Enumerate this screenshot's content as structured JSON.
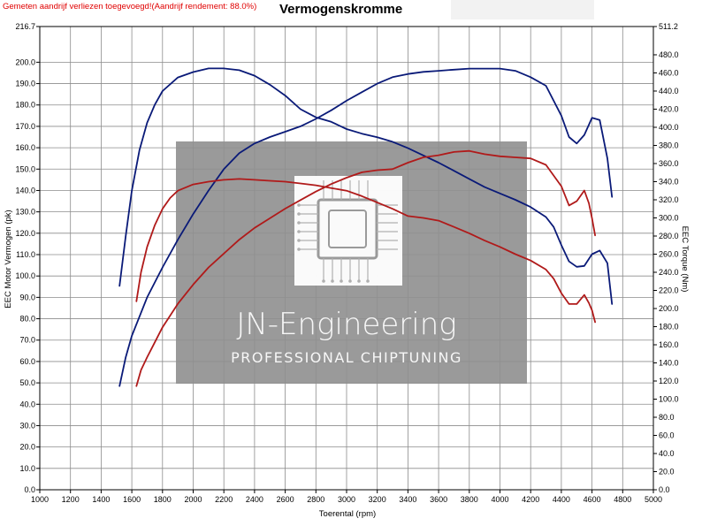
{
  "notice": "Gemeten aandrijf verliezen toegevoegd!(Aandrijf rendement: 88.0%)",
  "title": "Vermogenskromme",
  "watermark": {
    "brand": "JN-Engineering",
    "tagline": "PROFESSIONAL CHIPTUNING",
    "logo": "circuit-chip-logo"
  },
  "colors": {
    "tuned": "#0a1a78",
    "stock": "#b01a1a",
    "grid": "#8c8c8c",
    "watermark_bg": "#8f8f8f"
  },
  "chart_data": {
    "type": "line",
    "title": "Vermogenskromme",
    "xlabel": "Toerental (rpm)",
    "ylabel": "EEC Motor Vermogen (pk)",
    "y2label": "EEC Torque (Nm)",
    "xlim": [
      1000,
      5000
    ],
    "ylim": [
      0,
      216.7
    ],
    "y2lim": [
      0,
      511.2
    ],
    "x_ticks": [
      "1000",
      "1200",
      "1400",
      "1600",
      "1800",
      "2000",
      "2200",
      "2400",
      "2600",
      "2800",
      "3000",
      "3200",
      "3400",
      "3600",
      "3800",
      "4000",
      "4200",
      "4400",
      "4600",
      "4800",
      "5000"
    ],
    "y_ticks": [
      "0.0",
      "10.0",
      "20.0",
      "30.0",
      "40.0",
      "50.0",
      "60.0",
      "70.0",
      "80.0",
      "90.0",
      "100.0",
      "110.0",
      "120.0",
      "130.0",
      "140.0",
      "150.0",
      "160.0",
      "170.0",
      "180.0",
      "190.0",
      "200.0",
      "216.7"
    ],
    "y2_ticks": [
      "0.0",
      "20.0",
      "40.0",
      "60.0",
      "80.0",
      "100.0",
      "120.0",
      "140.0",
      "160.0",
      "180.0",
      "200.0",
      "220.0",
      "240.0",
      "260.0",
      "280.0",
      "300.0",
      "320.0",
      "340.0",
      "360.0",
      "380.0",
      "400.0",
      "420.0",
      "440.0",
      "460.0",
      "480.0",
      "511.2"
    ],
    "grid": true,
    "legend": "none",
    "series": [
      {
        "axis": "right",
        "color": "#0a1a78",
        "x": [
          1520,
          1560,
          1600,
          1650,
          1700,
          1750,
          1800,
          1900,
          2000,
          2100,
          2200,
          2300,
          2400,
          2500,
          2600,
          2700,
          2800,
          2900,
          3000,
          3100,
          3200,
          3300,
          3400,
          3500,
          3600,
          3700,
          3800,
          3900,
          4000,
          4100,
          4200,
          4300,
          4350,
          4400,
          4450,
          4500,
          4550,
          4600,
          4650,
          4700,
          4730
        ],
        "y": [
          225,
          280,
          330,
          375,
          405,
          425,
          440,
          455,
          461,
          465,
          465,
          463,
          457,
          447,
          435,
          420,
          411,
          406,
          398,
          393,
          389,
          384,
          377,
          369,
          361,
          352,
          343,
          334,
          327,
          320,
          312,
          301,
          290,
          270,
          252,
          246,
          247,
          260,
          264,
          250,
          205
        ]
      },
      {
        "axis": "left",
        "color": "#0a1a78",
        "x": [
          1520,
          1560,
          1600,
          1650,
          1700,
          1800,
          1900,
          2000,
          2100,
          2200,
          2300,
          2400,
          2500,
          2600,
          2700,
          2800,
          2900,
          3000,
          3100,
          3200,
          3300,
          3400,
          3500,
          3600,
          3700,
          3800,
          3900,
          4000,
          4100,
          4200,
          4300,
          4400,
          4450,
          4500,
          4550,
          4600,
          4650,
          4700,
          4730
        ],
        "y": [
          48.5,
          62,
          72,
          81,
          90,
          104,
          117,
          129,
          140,
          150,
          157.5,
          162,
          165,
          167.5,
          170,
          173.5,
          177.5,
          182,
          186,
          190,
          193,
          194.5,
          195.5,
          196,
          196.5,
          197,
          197,
          197,
          196,
          193,
          189,
          175,
          165,
          162,
          166,
          174,
          173,
          155,
          137
        ]
      },
      {
        "axis": "right",
        "color": "#b01a1a",
        "x": [
          1630,
          1660,
          1700,
          1750,
          1800,
          1850,
          1900,
          2000,
          2100,
          2200,
          2300,
          2400,
          2500,
          2600,
          2700,
          2800,
          2900,
          3000,
          3100,
          3200,
          3300,
          3400,
          3500,
          3600,
          3700,
          3800,
          3900,
          4000,
          4100,
          4200,
          4300,
          4350,
          4400,
          4450,
          4500,
          4550,
          4580,
          4600,
          4620
        ],
        "y": [
          208,
          240,
          268,
          292,
          310,
          322,
          330,
          337,
          340,
          342,
          343,
          342,
          341,
          340,
          338,
          336,
          333,
          330,
          324,
          317,
          310,
          302,
          300,
          297,
          290,
          283,
          275,
          268,
          260,
          253,
          243,
          233,
          217,
          205,
          205,
          215,
          206,
          198,
          185
        ]
      },
      {
        "axis": "left",
        "color": "#b01a1a",
        "x": [
          1630,
          1660,
          1700,
          1750,
          1800,
          1900,
          2000,
          2100,
          2200,
          2300,
          2400,
          2500,
          2600,
          2700,
          2800,
          2900,
          3000,
          3100,
          3200,
          3300,
          3400,
          3500,
          3600,
          3700,
          3800,
          3900,
          4000,
          4100,
          4200,
          4300,
          4400,
          4450,
          4500,
          4550,
          4580,
          4600,
          4620
        ],
        "y": [
          48.5,
          56,
          62,
          69,
          76,
          87,
          96,
          104,
          110.5,
          117,
          122.5,
          127,
          131.5,
          135.5,
          139.5,
          143,
          146,
          148.5,
          149.5,
          150,
          153,
          155.5,
          156.5,
          158,
          158.5,
          157,
          156,
          155.5,
          155,
          152,
          142,
          133,
          135,
          140,
          134,
          127,
          119
        ]
      }
    ]
  }
}
